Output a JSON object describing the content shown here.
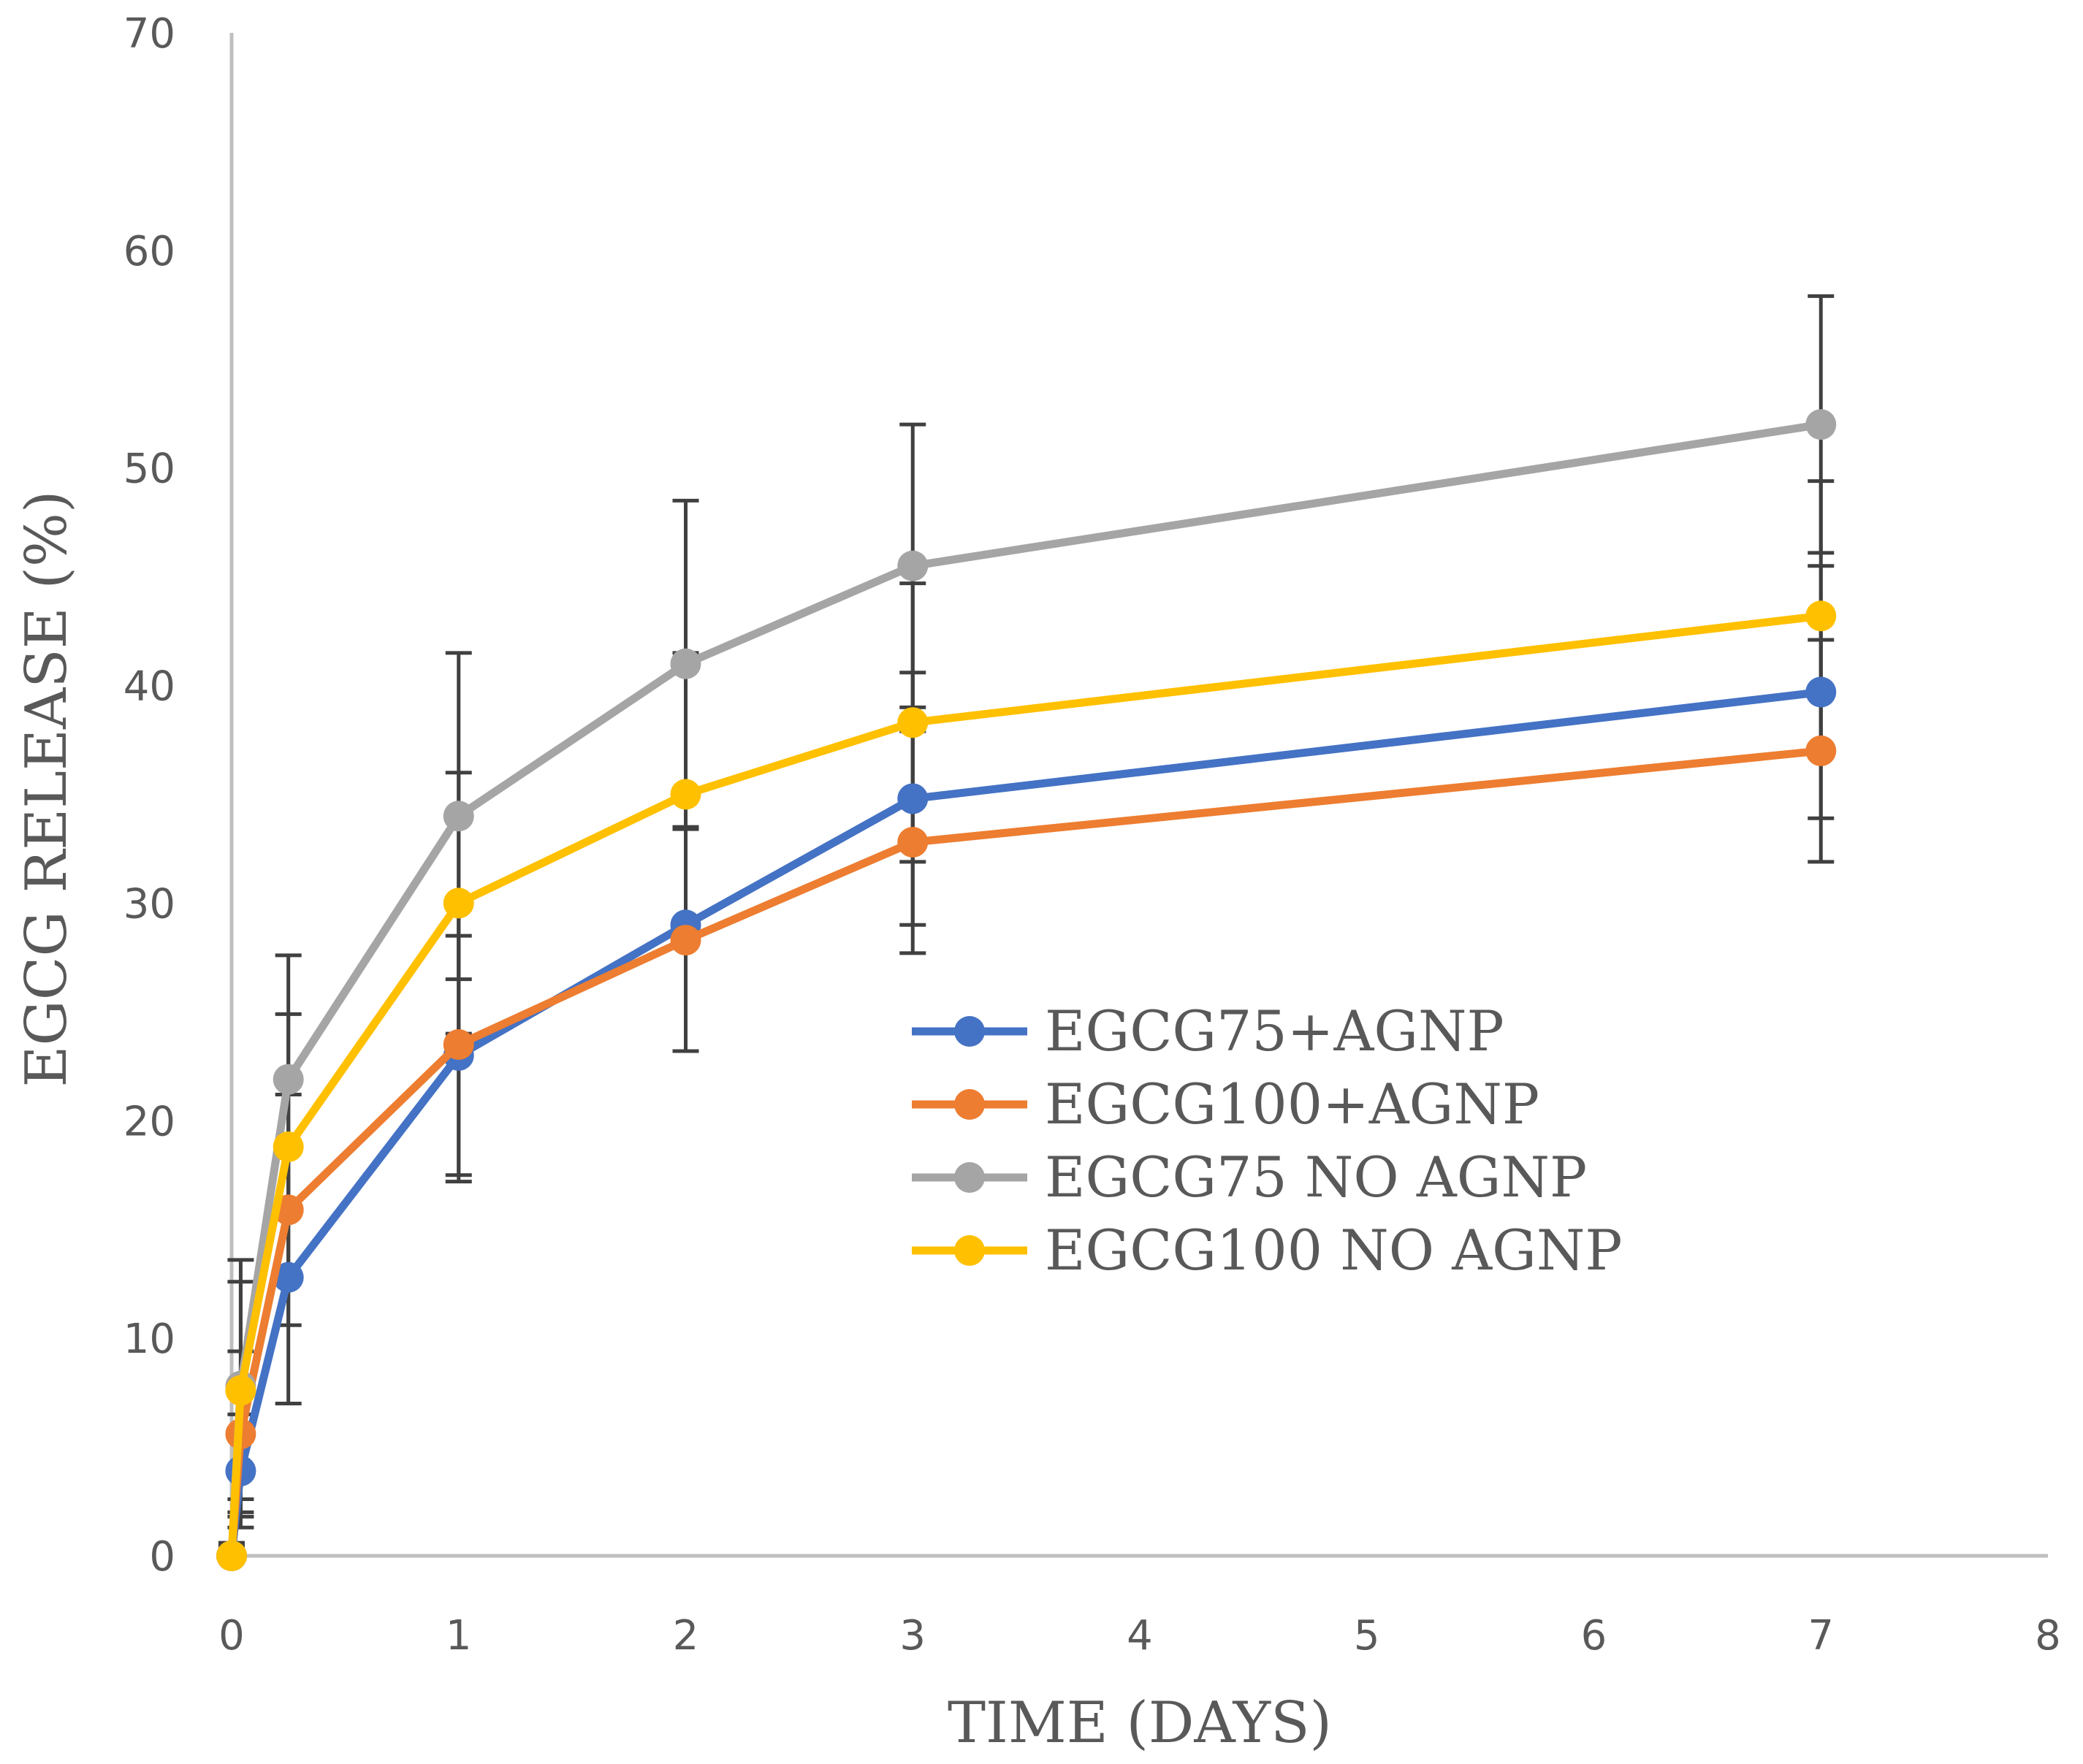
{
  "chart_data": {
    "type": "line",
    "title": "",
    "xlabel": "TIME (DAYS)",
    "ylabel": "EGCG RELEASE (%)",
    "xlim": [
      0,
      8
    ],
    "ylim": [
      0,
      70
    ],
    "xticks": [
      0,
      1,
      2,
      3,
      4,
      5,
      6,
      7,
      8
    ],
    "yticks": [
      0,
      10,
      20,
      30,
      40,
      50,
      60,
      70
    ],
    "grid": false,
    "legend_position": "center-right",
    "series": [
      {
        "name": "EGCG75+AGNP",
        "color": "#4472C4",
        "x": [
          0,
          0.04,
          0.25,
          1,
          2,
          3,
          7
        ],
        "y": [
          0,
          3.9,
          12.8,
          23.0,
          29.0,
          34.8,
          39.7
        ],
        "err": [
          0.6,
          2.6,
          5.8,
          5.5,
          5.8,
          5.8,
          5.8
        ]
      },
      {
        "name": "EGCG100+AGNP",
        "color": "#ED7D31",
        "x": [
          0,
          0.04,
          0.25,
          1,
          2,
          3,
          7
        ],
        "y": [
          0,
          5.6,
          15.9,
          23.5,
          28.3,
          32.8,
          37.0
        ],
        "err": [
          0.4,
          3.8,
          5.3,
          6.3,
          5.1,
          5.1,
          5.1
        ]
      },
      {
        "name": "EGCG75 NO AGNP",
        "color": "#A5A5A5",
        "x": [
          0,
          0.04,
          0.25,
          1,
          2,
          3,
          7
        ],
        "y": [
          0,
          7.8,
          21.9,
          34.0,
          41.0,
          45.5,
          52.0
        ],
        "err": [
          0.5,
          5.8,
          5.7,
          7.5,
          7.5,
          6.5,
          5.9
        ]
      },
      {
        "name": "EGCG100 NO AGNP",
        "color": "#FFC000",
        "x": [
          0,
          0.04,
          0.25,
          1,
          2,
          3,
          7
        ],
        "y": [
          0,
          7.6,
          18.8,
          30.0,
          35.0,
          38.3,
          43.2
        ],
        "err": [
          0.4,
          5.0,
          6.1,
          6.0,
          6.5,
          6.4,
          6.2
        ]
      }
    ],
    "error_bar_color": "#404040",
    "axis_color": "#bfbfbf"
  }
}
